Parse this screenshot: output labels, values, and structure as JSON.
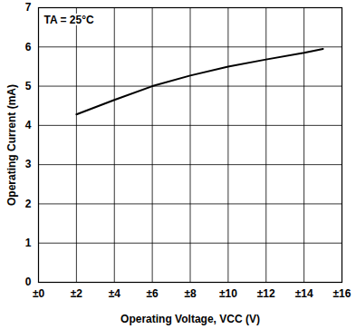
{
  "chart_data": {
    "type": "line",
    "annotation": "TA = 25°C",
    "x_label": "Operating Voltage, VCC (V)",
    "y_label": "Operating Current (mA)",
    "x": [
      2,
      4,
      6,
      8,
      10,
      12,
      14,
      15
    ],
    "values": [
      4.28,
      4.65,
      5.0,
      5.27,
      5.5,
      5.68,
      5.85,
      5.95
    ],
    "color": "#000000",
    "xlim": [
      0,
      16
    ],
    "xticks": [
      {
        "value": 0,
        "label": "±0"
      },
      {
        "value": 2,
        "label": "±2"
      },
      {
        "value": 4,
        "label": "±4"
      },
      {
        "value": 6,
        "label": "±6"
      },
      {
        "value": 8,
        "label": "±8"
      },
      {
        "value": 10,
        "label": "±10"
      },
      {
        "value": 12,
        "label": "±12"
      },
      {
        "value": 14,
        "label": "±14"
      },
      {
        "value": 16,
        "label": "±16"
      }
    ],
    "ylim": [
      0,
      7
    ],
    "yticks": [
      0,
      1,
      2,
      3,
      4,
      5,
      6,
      7
    ],
    "grid": true
  }
}
